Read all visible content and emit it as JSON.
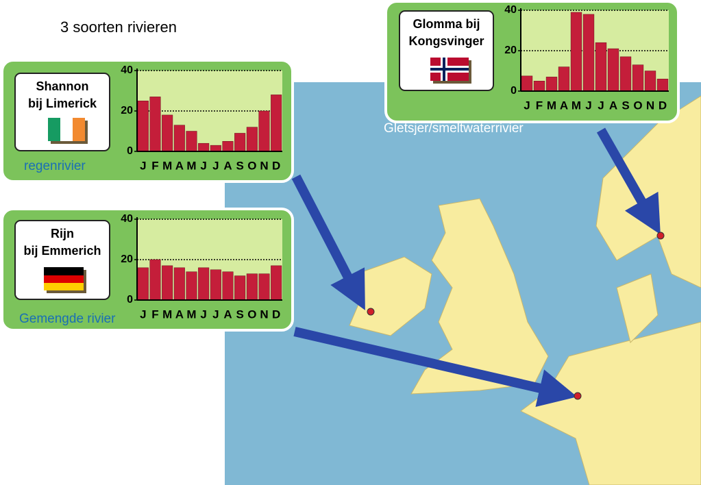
{
  "title": "3 soorten rivieren",
  "chart_data": [
    {
      "type": "bar",
      "title_lines": [
        "Shannon",
        "bij Limerick"
      ],
      "caption": "regenrivier",
      "categories": [
        "J",
        "F",
        "M",
        "A",
        "M",
        "J",
        "J",
        "A",
        "S",
        "O",
        "N",
        "D"
      ],
      "values": [
        25,
        27,
        18,
        13,
        10,
        4,
        3,
        5,
        9,
        12,
        20,
        28
      ],
      "color": "#c41e3a",
      "ylim": [
        0,
        40
      ],
      "yticks": [
        0,
        20,
        40
      ],
      "grid": true
    },
    {
      "type": "bar",
      "title_lines": [
        "Rijn",
        "bij Emmerich"
      ],
      "caption": "Gemengde rivier",
      "categories": [
        "J",
        "F",
        "M",
        "A",
        "M",
        "J",
        "J",
        "A",
        "S",
        "O",
        "N",
        "D"
      ],
      "values": [
        16,
        20,
        17,
        16,
        14,
        16,
        15,
        14,
        12,
        13,
        13,
        17
      ],
      "color": "#c41e3a",
      "ylim": [
        0,
        40
      ],
      "yticks": [
        0,
        20,
        40
      ],
      "grid": true
    },
    {
      "type": "bar",
      "title_lines": [
        "Glomma bij",
        "Kongsvinger"
      ],
      "caption": "Gletsjer/smeltwaterrivier",
      "categories": [
        "J",
        "F",
        "M",
        "A",
        "M",
        "J",
        "J",
        "A",
        "S",
        "O",
        "N",
        "D"
      ],
      "values": [
        7.5,
        5,
        7,
        12,
        39,
        38,
        24,
        21,
        17,
        13,
        10,
        6
      ],
      "color": "#c41e3a",
      "ylim": [
        0,
        40
      ],
      "yticks": [
        0,
        20,
        40
      ],
      "grid": true
    }
  ]
}
